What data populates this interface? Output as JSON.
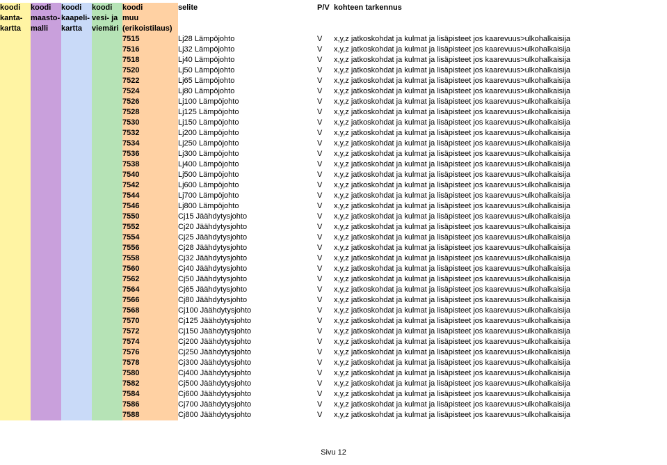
{
  "headers": {
    "kanta": [
      "koodi",
      "kanta-",
      "kartta"
    ],
    "maasto": [
      "koodi",
      "maasto-",
      "malli"
    ],
    "kaapeli": [
      "koodi",
      "kaapeli-",
      "kartta"
    ],
    "vesi": [
      "koodi",
      "vesi- ja",
      "viemäri"
    ],
    "muu": [
      "koodi",
      "muu",
      "(erikoistilaus)"
    ],
    "selite": "selite",
    "pv": "P/V",
    "tark": "kohteen tarkennus"
  },
  "colors": {
    "kanta": "#fff4a3",
    "maasto": "#c9a0dc",
    "kaapeli": "#c9daf8",
    "vesi": "#b6e3b6",
    "muu": "#ffd1a3"
  },
  "tark_default": "x,y,z jatkoskohdat ja kulmat ja lisäpisteet jos kaarevuus>ulkohalkaisija",
  "rows": [
    {
      "muu": "7515",
      "selite": "Lj28 Lämpöjohto",
      "pv": "V"
    },
    {
      "muu": "7516",
      "selite": "Lj32 Lämpöjohto",
      "pv": "V"
    },
    {
      "muu": "7518",
      "selite": "Lj40 Lämpöjohto",
      "pv": "V"
    },
    {
      "muu": "7520",
      "selite": "Lj50 Lämpöjohto",
      "pv": "V"
    },
    {
      "muu": "7522",
      "selite": "Lj65 Lämpöjohto",
      "pv": "V"
    },
    {
      "muu": "7524",
      "selite": "Lj80 Lämpöjohto",
      "pv": "V"
    },
    {
      "muu": "7526",
      "selite": "Lj100 Lämpöjohto",
      "pv": "V"
    },
    {
      "muu": "7528",
      "selite": "Lj125 Lämpöjohto",
      "pv": "V"
    },
    {
      "muu": "7530",
      "selite": "Lj150 Lämpöjohto",
      "pv": "V"
    },
    {
      "muu": "7532",
      "selite": "Lj200 Lämpöjohto",
      "pv": "V"
    },
    {
      "muu": "7534",
      "selite": "Lj250 Lämpöjohto",
      "pv": "V"
    },
    {
      "muu": "7536",
      "selite": "Lj300 Lämpöjohto",
      "pv": "V"
    },
    {
      "muu": "7538",
      "selite": "Lj400 Lämpöjohto",
      "pv": "V"
    },
    {
      "muu": "7540",
      "selite": "Lj500 Lämpöjohto",
      "pv": "V"
    },
    {
      "muu": "7542",
      "selite": "Lj600 Lämpöjohto",
      "pv": "V"
    },
    {
      "muu": "7544",
      "selite": "Lj700 Lämpöjohto",
      "pv": "V"
    },
    {
      "muu": "7546",
      "selite": "Lj800 Lämpöjohto",
      "pv": "V"
    },
    {
      "muu": "7550",
      "selite": "Cj15 Jäähdytysjohto",
      "pv": "V"
    },
    {
      "muu": "7552",
      "selite": "Cj20 Jäähdytysjohto",
      "pv": "V"
    },
    {
      "muu": "7554",
      "selite": "Cj25 Jäähdytysjohto",
      "pv": "V"
    },
    {
      "muu": "7556",
      "selite": "Cj28 Jäähdytysjohto",
      "pv": "V"
    },
    {
      "muu": "7558",
      "selite": "Cj32 Jäähdytysjohto",
      "pv": "V"
    },
    {
      "muu": "7560",
      "selite": "Cj40 Jäähdytysjohto",
      "pv": "V"
    },
    {
      "muu": "7562",
      "selite": "Cj50 Jäähdytysjohto",
      "pv": "V"
    },
    {
      "muu": "7564",
      "selite": "Cj65 Jäähdytysjohto",
      "pv": "V"
    },
    {
      "muu": "7566",
      "selite": "Cj80 Jäähdytysjohto",
      "pv": "V"
    },
    {
      "muu": "7568",
      "selite": "Cj100 Jäähdytysjohto",
      "pv": "V"
    },
    {
      "muu": "7570",
      "selite": "Cj125 Jäähdytysjohto",
      "pv": "V"
    },
    {
      "muu": "7572",
      "selite": "Cj150 Jäähdytysjohto",
      "pv": "V"
    },
    {
      "muu": "7574",
      "selite": "Cj200 Jäähdytysjohto",
      "pv": "V"
    },
    {
      "muu": "7576",
      "selite": "Cj250 Jäähdytysjohto",
      "pv": "V"
    },
    {
      "muu": "7578",
      "selite": "Cj300 Jäähdytysjohto",
      "pv": "V"
    },
    {
      "muu": "7580",
      "selite": "Cj400 Jäähdytysjohto",
      "pv": "V"
    },
    {
      "muu": "7582",
      "selite": "Cj500 Jäähdytysjohto",
      "pv": "V"
    },
    {
      "muu": "7584",
      "selite": "Cj600 Jäähdytysjohto",
      "pv": "V"
    },
    {
      "muu": "7586",
      "selite": "Cj700 Jäähdytysjohto",
      "pv": "V"
    },
    {
      "muu": "7588",
      "selite": "Cj800 Jäähdytysjohto",
      "pv": "V"
    }
  ],
  "footer": "Sivu 12"
}
